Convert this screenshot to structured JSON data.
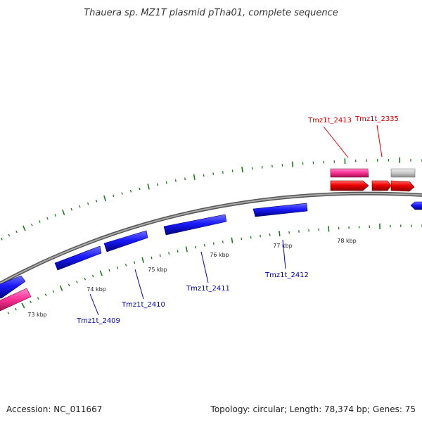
{
  "title": "Thauera sp. MZ1T plasmid pTha01, complete sequence",
  "footer": {
    "accession": "Accession: NC_011667",
    "summary": "Topology: circular; Length: 78,374 bp; Genes: 75"
  },
  "colors": {
    "forward_gene": "#e60000",
    "reverse_gene": "#1a1aff",
    "pink_gene": "#ff3399",
    "gray_gene": "#bbbbbb",
    "tick": "#1a7a1a",
    "backbone": "#888888",
    "forward_label": "#cc0000",
    "reverse_label": "#0000aa"
  },
  "scale_labels": [
    "73 kbp",
    "74 kbp",
    "75 kbp",
    "76 kbp",
    "77 kbp",
    "78 kbp"
  ],
  "gene_labels": [
    {
      "id": "Tmz1t_2413",
      "strand": "forward"
    },
    {
      "id": "Tmz1t_2335",
      "strand": "forward"
    },
    {
      "id": "Tmz1t_2409",
      "strand": "reverse"
    },
    {
      "id": "Tmz1t_2410",
      "strand": "reverse"
    },
    {
      "id": "Tmz1t_2411",
      "strand": "reverse"
    },
    {
      "id": "Tmz1t_2412",
      "strand": "reverse"
    }
  ]
}
